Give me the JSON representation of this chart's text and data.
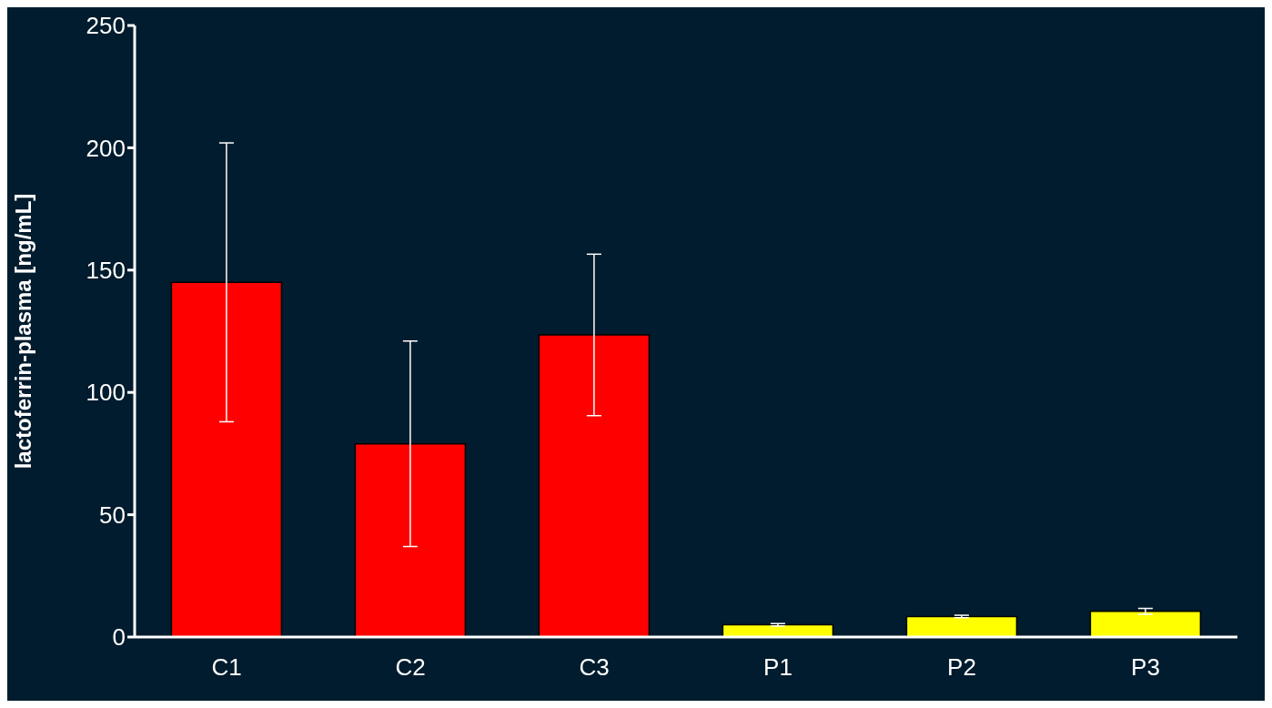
{
  "chart_data": {
    "type": "bar",
    "ylabel": "lactoferrin-plasma [ng/mL]",
    "categories": [
      "C1",
      "C2",
      "C3",
      "P1",
      "P2",
      "P3"
    ],
    "values": [
      145,
      79,
      123.5,
      5,
      8.4,
      10.5
    ],
    "errors": [
      57,
      42,
      33,
      0.5,
      0.5,
      1.2
    ],
    "colors": [
      "#ff0000",
      "#ff0000",
      "#ff0000",
      "#ffff00",
      "#ffff00",
      "#ffff00"
    ],
    "ylim": [
      0,
      250
    ],
    "yticks": [
      0,
      50,
      100,
      150,
      200,
      250
    ],
    "grid": false
  }
}
